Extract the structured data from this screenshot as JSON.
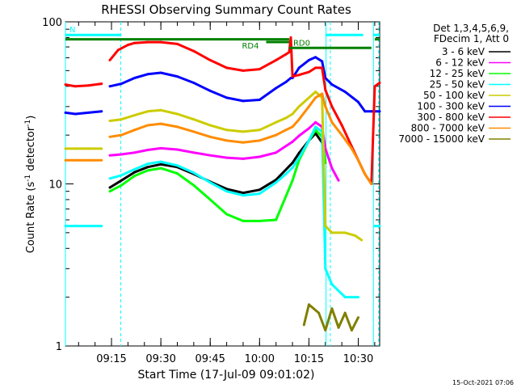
{
  "chart_data": {
    "type": "line",
    "title": "RHESSI Observing Summary Count Rates",
    "xlabel": "Start Time (17-Jul-09 09:01:02)",
    "ylabel_main": "Count Rate (s",
    "ylabel_sup": "-1",
    "ylabel_tail": " detector",
    "ylabel_end": ")",
    "y_scale": "log",
    "ylim": [
      1,
      100
    ],
    "x_unit": "minutes since 09:00",
    "xlim": [
      1.0,
      96.5
    ],
    "y_ticks": [
      {
        "value": 1,
        "label": "1"
      },
      {
        "value": 10,
        "label": "10"
      },
      {
        "value": 100,
        "label": "100"
      }
    ],
    "x_ticks": [
      {
        "value": 15,
        "label": "09:15"
      },
      {
        "value": 30,
        "label": "09:30"
      },
      {
        "value": 45,
        "label": "09:45"
      },
      {
        "value": 60,
        "label": "10:00"
      },
      {
        "value": 75,
        "label": "10:15"
      },
      {
        "value": 90,
        "label": "10:30"
      }
    ],
    "legend_header": [
      "Det 1,3,4,5,6,9,",
      "FDecim 1, Att 0"
    ],
    "legend_position": "right",
    "series": [
      {
        "name": "3 - 6 keV",
        "color": "#000000",
        "x": [
          1.0,
          13.0,
          14.5,
          18,
          22,
          26,
          30,
          35,
          40,
          45,
          50,
          55,
          60,
          65,
          70,
          72,
          75,
          77,
          79,
          80
        ],
        "y": [
          null,
          null,
          9.5,
          10.5,
          11.8,
          12.7,
          13.2,
          12.7,
          11.5,
          10.3,
          9.3,
          8.8,
          9.2,
          10.6,
          13.5,
          15.5,
          18.5,
          20.5,
          18.0,
          13.5
        ]
      },
      {
        "name": "6 - 12 keV",
        "color": "#ff00ff",
        "x": [
          1.0,
          13.0,
          14.5,
          18,
          22,
          26,
          30,
          35,
          40,
          45,
          50,
          55,
          60,
          65,
          70,
          72,
          75,
          77,
          79,
          80,
          82,
          84
        ],
        "y": [
          null,
          null,
          15.0,
          15.2,
          15.6,
          16.2,
          16.6,
          16.3,
          15.6,
          15.0,
          14.5,
          14.3,
          14.7,
          15.6,
          18.2,
          19.8,
          22.0,
          24.0,
          22.5,
          16.5,
          12.5,
          10.5
        ]
      },
      {
        "name": "12 - 25 keV",
        "color": "#00ff00",
        "x": [
          1.0,
          13.0,
          14.5,
          18,
          22,
          26,
          30,
          35,
          40,
          45,
          50,
          55,
          60,
          65,
          70,
          72,
          75,
          77,
          79,
          80
        ],
        "y": [
          null,
          null,
          9.0,
          9.8,
          11.2,
          12.1,
          12.5,
          11.6,
          9.8,
          8.0,
          6.5,
          5.9,
          5.9,
          6.0,
          10.5,
          14.0,
          18.5,
          21.5,
          19.5,
          13.5
        ]
      },
      {
        "name": "25 - 50 keV",
        "color": "#00ffff",
        "x": [
          1.0,
          4,
          8,
          12,
          13.0,
          14.5,
          18,
          22,
          26,
          30,
          35,
          40,
          45,
          50,
          55,
          60,
          65,
          68,
          70,
          72,
          75,
          77,
          79,
          80,
          82,
          86,
          90,
          92,
          95,
          96.5
        ],
        "y": [
          5.5,
          5.5,
          5.5,
          5.5,
          null,
          10.8,
          11.3,
          12.3,
          13.3,
          13.7,
          13.0,
          11.7,
          10.2,
          9.0,
          8.5,
          8.7,
          10.2,
          11.5,
          12.6,
          14.5,
          18.5,
          22.5,
          21.0,
          3.0,
          2.4,
          2.0,
          2.0,
          null,
          5.5,
          5.5
        ]
      },
      {
        "name": "50 - 100 keV",
        "color": "#cccc00",
        "x": [
          1.0,
          4,
          8,
          12,
          13.0,
          14.5,
          18,
          22,
          26,
          30,
          35,
          40,
          45,
          50,
          55,
          60,
          65,
          68,
          70,
          72,
          75,
          77,
          79,
          80,
          82,
          86,
          89,
          91,
          92
        ],
        "y": [
          16.5,
          16.5,
          16.5,
          16.5,
          null,
          24.5,
          25.0,
          26.5,
          28.0,
          28.5,
          27.0,
          25.0,
          23.0,
          21.5,
          21.0,
          21.5,
          24.0,
          25.5,
          27.0,
          30.0,
          34.0,
          37.0,
          34.0,
          5.5,
          5.0,
          5.0,
          4.8,
          4.5,
          null
        ]
      },
      {
        "name": "100 - 300 keV",
        "color": "#0000ff",
        "x": [
          1.0,
          4,
          8,
          12,
          13.0,
          14.5,
          18,
          22,
          26,
          30,
          35,
          40,
          45,
          50,
          55,
          60,
          65,
          68,
          69.5,
          70,
          72,
          75,
          77,
          79,
          80,
          82,
          86,
          90,
          92,
          94,
          96.5
        ],
        "y": [
          27.5,
          27.0,
          27.5,
          28.0,
          null,
          40.0,
          41.5,
          45.0,
          47.5,
          48.5,
          46.0,
          42.0,
          37.5,
          34.0,
          32.5,
          33.0,
          39.0,
          42.5,
          45.0,
          45.0,
          52.0,
          58.0,
          60.5,
          57.0,
          45.0,
          41.0,
          37.0,
          32.0,
          28.0,
          28.0,
          28.0
        ]
      },
      {
        "name": "300 - 800 keV",
        "color": "#ff0000",
        "x": [
          1.0,
          4,
          8,
          12,
          13.0,
          14.5,
          17,
          20,
          22,
          26,
          30,
          35,
          40,
          45,
          50,
          55,
          60,
          65,
          68,
          69,
          69.5,
          70,
          72,
          75,
          77,
          79,
          80,
          82,
          85,
          88,
          90,
          92,
          94,
          95,
          96.5
        ],
        "y": [
          41.0,
          40.0,
          40.5,
          41.5,
          null,
          58.0,
          67.0,
          72.0,
          74.0,
          75.0,
          75.0,
          73.0,
          66.0,
          58.0,
          52.0,
          50.0,
          51.0,
          58.0,
          63.0,
          65.0,
          80.0,
          46.0,
          47.0,
          49.0,
          52.0,
          52.0,
          38.0,
          30.0,
          23.0,
          17.0,
          14.0,
          11.5,
          10.0,
          40.0,
          42.0
        ]
      },
      {
        "name": "800 - 7000 keV",
        "color": "#ff8c00",
        "x": [
          1.0,
          4,
          8,
          12,
          13.0,
          14.5,
          18,
          22,
          26,
          30,
          35,
          40,
          45,
          50,
          55,
          60,
          65,
          68,
          70,
          72,
          75,
          77,
          79,
          80,
          82,
          85,
          88,
          90,
          92,
          94
        ],
        "y": [
          14.0,
          14.0,
          14.0,
          14.0,
          null,
          19.5,
          20.0,
          21.5,
          23.0,
          23.5,
          22.5,
          21.0,
          19.5,
          18.5,
          18.0,
          18.5,
          20.0,
          21.5,
          22.5,
          25.0,
          30.0,
          34.0,
          36.0,
          30.0,
          24.0,
          20.0,
          16.5,
          14.0,
          11.5,
          10.0
        ]
      },
      {
        "name": "7000 - 15000 keV",
        "color": "#808000",
        "x": [
          1.0,
          73,
          73.5,
          75,
          78,
          80,
          82,
          84,
          86,
          88,
          90,
          91
        ],
        "y": [
          null,
          null,
          1.35,
          1.8,
          1.6,
          1.25,
          1.7,
          1.3,
          1.6,
          1.25,
          1.5,
          null
        ]
      }
    ],
    "bars": [
      {
        "label": "N",
        "color": "#00ffff",
        "y": 83,
        "segments": [
          [
            1.0,
            18.0
          ],
          [
            80.0,
            91.5
          ],
          [
            94.5,
            96.5
          ]
        ]
      },
      {
        "label": "",
        "color": "#008000",
        "y": 78,
        "segments": [
          [
            1.0,
            69.0
          ]
        ]
      },
      {
        "label": "RD4",
        "color": "#008000",
        "y": 75,
        "segments": [
          [
            62.0,
            69.0
          ]
        ]
      },
      {
        "label": "RD0",
        "color": "#008000",
        "y": 69,
        "segments": [
          [
            69.0,
            94.0
          ]
        ]
      },
      {
        "label": "",
        "color": "#008000",
        "y": 78,
        "segments": [
          [
            95.0,
            96.5
          ]
        ]
      }
    ],
    "vlines": [
      {
        "x": 1.0,
        "style": "solid",
        "color": "#00ffff"
      },
      {
        "x": 17.8,
        "style": "dashed",
        "color": "#00ffff"
      },
      {
        "x": 80.2,
        "style": "solid",
        "color": "#00ffff"
      },
      {
        "x": 81.5,
        "style": "dashed",
        "color": "#00ffff"
      },
      {
        "x": 94.6,
        "style": "solid",
        "color": "#00ffff"
      },
      {
        "x": 96.2,
        "style": "dashed",
        "color": "#00ffff"
      }
    ],
    "footer": "15-Oct-2021 07:06"
  }
}
